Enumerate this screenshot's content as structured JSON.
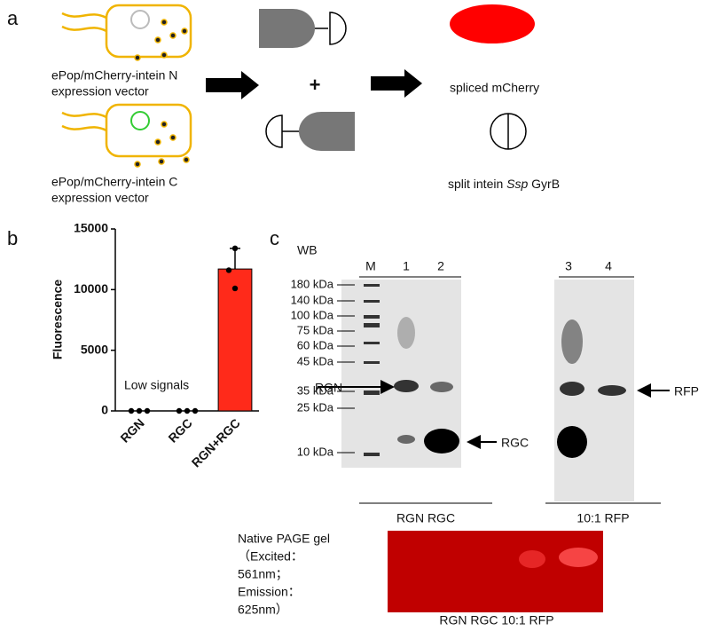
{
  "panel_a": {
    "label": "a",
    "vector_n": [
      "ePop/mCherry-intein N",
      "expression vector"
    ],
    "vector_c": [
      "ePop/mCherry-intein C",
      "expression vector"
    ],
    "plus": "+",
    "spliced": "spliced mCherry",
    "intein": [
      "split intein ",
      "Ssp",
      " GyrB"
    ]
  },
  "chart_data": {
    "type": "bar",
    "label": "b",
    "y_label": "Fluorescence",
    "annotation": "Low signals",
    "categories": [
      "RGN",
      "RGC",
      "RGN+RGC"
    ],
    "values": [
      0,
      0,
      11700
    ],
    "errors": [
      0,
      0,
      1700
    ],
    "points": [
      [
        0,
        0,
        0
      ],
      [
        0,
        0,
        0
      ],
      [
        13400,
        11600,
        10100
      ]
    ],
    "color": "#ff2a1a",
    "ylim": [
      0,
      15000
    ],
    "yticks": [
      0,
      5000,
      10000,
      15000
    ]
  },
  "panel_c": {
    "label": "c",
    "wb": "WB",
    "lanes": [
      "M",
      "1",
      "2",
      "3",
      "4"
    ],
    "ladder": [
      "180 kDa",
      "140 kDa",
      "100 kDa",
      "75 kDa",
      "60 kDa",
      "45 kDa",
      "35 kDa",
      "25 kDa",
      "10 kDa"
    ],
    "arrows": [
      "RGN",
      "RGC",
      "RFP"
    ],
    "group_left": "RGN RGC",
    "group_right": "10:1 RFP",
    "native": [
      "Native PAGE gel",
      "（Excited：",
      "561nm；",
      "Emission：",
      "625nm）"
    ],
    "native_lanes": "RGN RGC  10:1 RFP"
  }
}
